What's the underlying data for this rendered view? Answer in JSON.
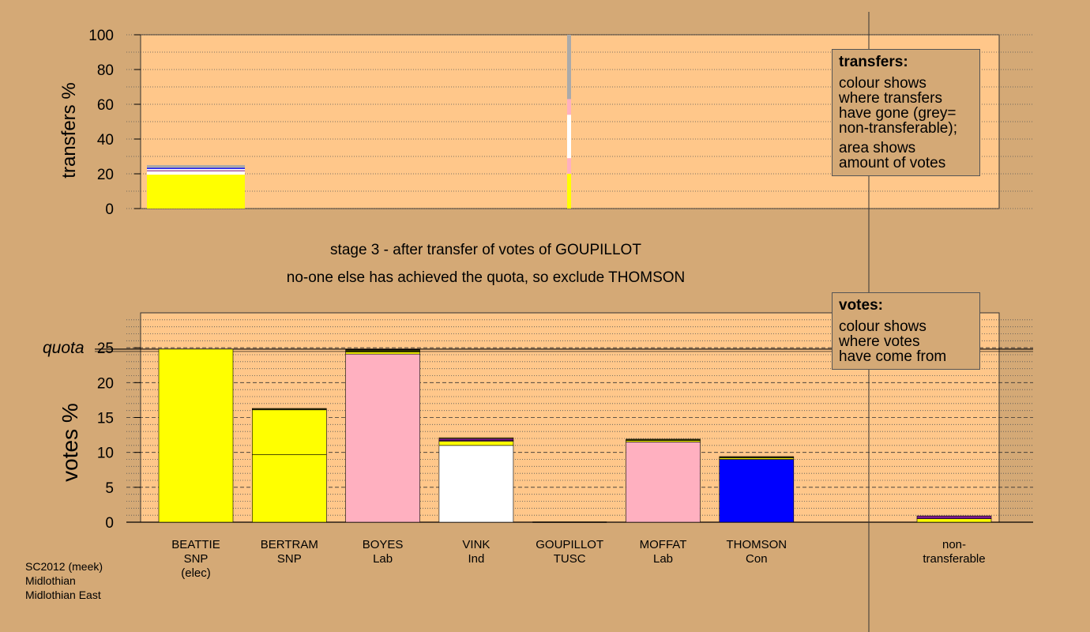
{
  "chart_data": {
    "type": "bar",
    "colors": {
      "SNP": "#ffff00",
      "Lab": "#ffb0c0",
      "Ind": "#ffffff",
      "TUSC": "#dddddd",
      "Con": "#0000ff",
      "purple": "#7a1a8c",
      "grey": "#aaaaaa",
      "dark": "#333300",
      "panel": "#ffc78a",
      "background": "#d4a976"
    },
    "top_chart": {
      "ylabel": "transfers %",
      "ylim": [
        0,
        100
      ],
      "yticks": [
        0,
        20,
        40,
        60,
        80,
        100
      ],
      "bars": [
        {
          "candidate": "BEATTIE",
          "segments": [
            {
              "party": "SNP",
              "value": 19.5
            },
            {
              "party": "Ind",
              "value": 2.0
            },
            {
              "party": "purple",
              "value": 0.5
            },
            {
              "party": "Ind",
              "value": 0.8
            },
            {
              "party": "Con",
              "value": 0.6
            },
            {
              "party": "grey",
              "value": 1.6
            }
          ]
        },
        {
          "candidate": "GOUPILLOT",
          "segments": [
            {
              "party": "SNP",
              "value": 20
            },
            {
              "party": "Lab",
              "value": 9
            },
            {
              "party": "Ind",
              "value": 25
            },
            {
              "party": "Lab",
              "value": 9
            },
            {
              "party": "grey",
              "value": 37
            }
          ]
        }
      ]
    },
    "bottom_chart": {
      "ylabel": "votes %",
      "ylim": [
        0,
        30
      ],
      "yticks": [
        0,
        5,
        10,
        15,
        20,
        25
      ],
      "quota": 24.8,
      "quota_label": "quota",
      "candidates": [
        {
          "name": "BEATTIE",
          "party": "SNP",
          "note": "(elec)",
          "segments": [
            {
              "party": "SNP",
              "value": 24.8
            }
          ]
        },
        {
          "name": "BERTRAM",
          "party": "SNP",
          "note": "",
          "segments": [
            {
              "party": "SNP",
              "value": 9.7
            },
            {
              "party": "SNP",
              "value": 6.4
            },
            {
              "party": "dark",
              "value": 0.2
            }
          ]
        },
        {
          "name": "BOYES",
          "party": "Lab",
          "note": "",
          "segments": [
            {
              "party": "Lab",
              "value": 24.1
            },
            {
              "party": "SNP",
              "value": 0.3
            },
            {
              "party": "dark",
              "value": 0.3
            }
          ]
        },
        {
          "name": "VINK",
          "party": "Ind",
          "note": "",
          "segments": [
            {
              "party": "Ind",
              "value": 11.0
            },
            {
              "party": "SNP",
              "value": 0.6
            },
            {
              "party": "Lab",
              "value": 0.1
            },
            {
              "party": "purple",
              "value": 0.3
            },
            {
              "party": "SNP",
              "value": 0.1
            }
          ]
        },
        {
          "name": "GOUPILLOT",
          "party": "TUSC",
          "note": "",
          "segments": []
        },
        {
          "name": "MOFFAT",
          "party": "Lab",
          "note": "",
          "segments": [
            {
              "party": "Lab",
              "value": 11.5
            },
            {
              "party": "SNP",
              "value": 0.2
            },
            {
              "party": "dark",
              "value": 0.2
            }
          ]
        },
        {
          "name": "THOMSON",
          "party": "Con",
          "note": "",
          "segments": [
            {
              "party": "Con",
              "value": 9.0
            },
            {
              "party": "SNP",
              "value": 0.2
            },
            {
              "party": "dark",
              "value": 0.2
            }
          ]
        }
      ],
      "nontransferable": {
        "label_line1": "non-",
        "label_line2": "transferable",
        "segments": [
          {
            "party": "SNP",
            "value": 0.5
          },
          {
            "party": "purple",
            "value": 0.4
          }
        ]
      }
    }
  },
  "stage_text": "stage 3 - after transfer of votes of GOUPILLOT",
  "status_text": "no-one else has achieved the quota, so exclude THOMSON",
  "transfers_legend": {
    "title": "transfers:",
    "lines": [
      "colour shows",
      "where transfers",
      "have gone (grey=",
      "non-transferable);"
    ],
    "lines2": [
      "area shows",
      "amount of votes"
    ]
  },
  "votes_legend": {
    "title": "votes:",
    "lines": [
      "colour shows",
      "where votes",
      "have come from"
    ]
  },
  "footer": {
    "line1": "SC2012 (meek)",
    "line2": "Midlothian",
    "line3": "Midlothian East"
  }
}
